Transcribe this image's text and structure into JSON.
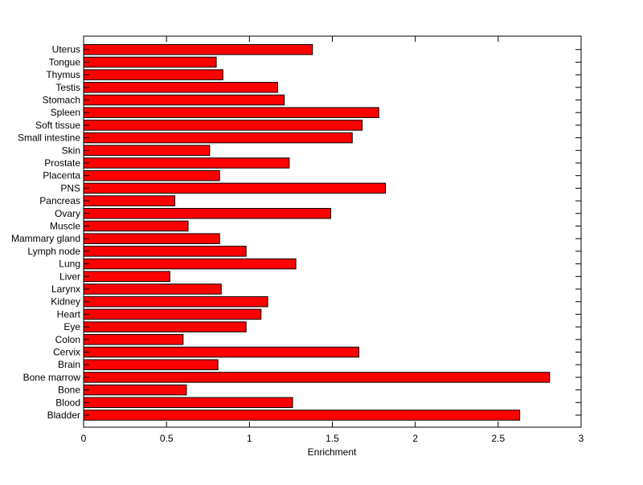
{
  "chart_data": {
    "type": "bar",
    "orientation": "horizontal",
    "title": "",
    "xlabel": "Enrichment",
    "ylabel": "",
    "xlim": [
      0,
      3
    ],
    "xticks": [
      0,
      0.5,
      1,
      1.5,
      2,
      2.5,
      3
    ],
    "xtick_labels": [
      "0",
      "0.5",
      "1",
      "1.5",
      "2",
      "2.5",
      "3"
    ],
    "grid": false,
    "legend": "none",
    "bar_color": "#ff0000",
    "bar_edge_color": "#000000",
    "categories": [
      "Bladder",
      "Blood",
      "Bone",
      "Bone marrow",
      "Brain",
      "Cervix",
      "Colon",
      "Eye",
      "Heart",
      "Kidney",
      "Larynx",
      "Liver",
      "Lung",
      "Lymph node",
      "Mammary gland",
      "Muscle",
      "Ovary",
      "Pancreas",
      "PNS",
      "Placenta",
      "Prostate",
      "Skin",
      "Small intestine",
      "Soft tissue",
      "Spleen",
      "Stomach",
      "Testis",
      "Thymus",
      "Tongue",
      "Uterus"
    ],
    "values": [
      2.63,
      1.26,
      0.62,
      2.81,
      0.81,
      1.66,
      0.6,
      0.98,
      1.07,
      1.11,
      0.83,
      0.52,
      1.28,
      0.98,
      0.82,
      0.63,
      1.49,
      0.55,
      1.82,
      0.82,
      1.24,
      0.76,
      1.62,
      1.68,
      1.78,
      1.21,
      1.17,
      0.84,
      0.8,
      1.38
    ]
  }
}
